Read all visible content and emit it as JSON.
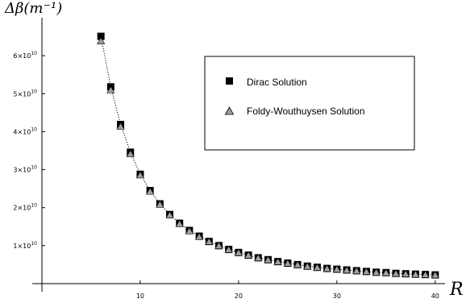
{
  "chart_data": {
    "type": "scatter",
    "ylabel": "Δβ(m⁻¹)",
    "xlabel": "R",
    "xlim": [
      0,
      41
    ],
    "ylim": [
      0,
      70000000000
    ],
    "x_ticks": [
      {
        "value": 10,
        "label": "10"
      },
      {
        "value": 20,
        "label": "20"
      },
      {
        "value": 30,
        "label": "30"
      },
      {
        "value": 40,
        "label": "40"
      }
    ],
    "y_ticks": [
      {
        "value": 10000000000,
        "mantissa": "1",
        "exponent": "10"
      },
      {
        "value": 20000000000,
        "mantissa": "2",
        "exponent": "10"
      },
      {
        "value": 30000000000,
        "mantissa": "3",
        "exponent": "10"
      },
      {
        "value": 40000000000,
        "mantissa": "4",
        "exponent": "10"
      },
      {
        "value": 50000000000,
        "mantissa": "5",
        "exponent": "10"
      },
      {
        "value": 60000000000,
        "mantissa": "6",
        "exponent": "10"
      }
    ],
    "x": [
      6,
      7,
      8,
      9,
      10,
      11,
      12,
      13,
      14,
      15,
      16,
      17,
      18,
      19,
      20,
      21,
      22,
      23,
      24,
      25,
      26,
      27,
      28,
      29,
      30,
      31,
      32,
      33,
      34,
      35,
      36,
      37,
      38,
      39,
      40
    ],
    "series": [
      {
        "name": "Dirac Solution",
        "marker": "square",
        "color": "#000000",
        "values": [
          65100000000,
          51800000000,
          41900000000,
          34600000000,
          28800000000,
          24500000000,
          21000000000,
          18200000000,
          15900000000,
          14000000000,
          12500000000,
          11100000000,
          10000000000,
          9000000000,
          8200000000,
          7500000000,
          6800000000,
          6300000000,
          5800000000,
          5400000000,
          5000000000,
          4600000000,
          4300000000,
          4000000000,
          3800000000,
          3600000000,
          3400000000,
          3200000000,
          3000000000,
          2900000000,
          2700000000,
          2600000000,
          2500000000,
          2400000000,
          2300000000
        ]
      },
      {
        "name": "Foldy-Wouthuysen Solution",
        "marker": "triangle",
        "color": "#a0a0a0",
        "values": [
          63900000000,
          51000000000,
          41400000000,
          34200000000,
          28600000000,
          24300000000,
          20900000000,
          18100000000,
          15800000000,
          13900000000,
          12400000000,
          11100000000,
          10000000000,
          9000000000,
          8200000000,
          7500000000,
          6800000000,
          6300000000,
          5800000000,
          5400000000,
          5000000000,
          4600000000,
          4300000000,
          4000000000,
          3800000000,
          3600000000,
          3400000000,
          3200000000,
          3000000000,
          2900000000,
          2700000000,
          2600000000,
          2500000000,
          2400000000,
          2300000000
        ]
      }
    ],
    "fit_line": {
      "style": "dotted",
      "color": "#000000"
    },
    "legend": {
      "placement": "top-right"
    },
    "grid": false
  }
}
